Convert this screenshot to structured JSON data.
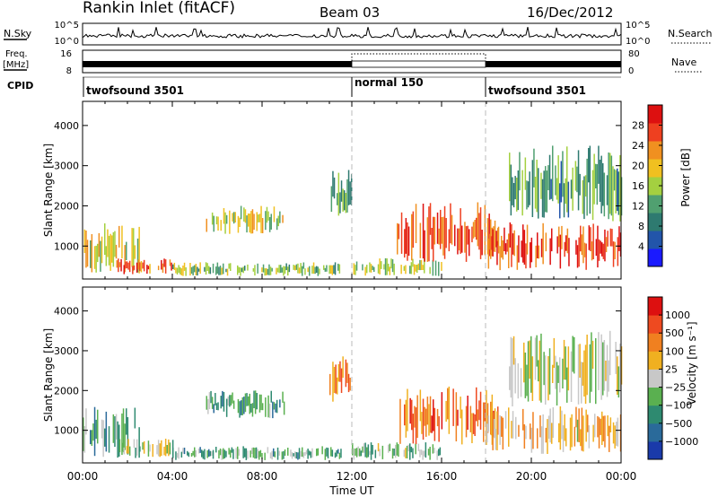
{
  "header": {
    "station": "Rankin Inlet (fitACF)",
    "beam": "Beam 03",
    "date": "16/Dec/2012"
  },
  "strips": {
    "nsky_label": "N.Sky",
    "nsearch_label": "N.Search",
    "nsky_ticks": [
      "10^5",
      "10^0"
    ],
    "nsearch_ticks": [
      "10^5",
      "10^0"
    ],
    "freq_label_top": "Freq.",
    "freq_label_bottom": "[MHz]",
    "freq_ticks": [
      "16",
      "8"
    ],
    "nave_label": "Nave",
    "nave_ticks": [
      "80",
      "0"
    ],
    "cpid_label": "CPID",
    "modes": [
      {
        "name": "twofsound 3501",
        "start": "00:00",
        "end": "12:00"
      },
      {
        "name": "normal 150",
        "start": "12:00",
        "end": "18:00"
      },
      {
        "name": "twofsound 3501",
        "start": "18:00",
        "end": "24:00"
      }
    ]
  },
  "chart_data": [
    {
      "type": "heatmap",
      "panel": "power",
      "xlabel": "",
      "ylabel": "Slant Range [km]",
      "xlim_hours": [
        0,
        24
      ],
      "ylim": [
        180,
        4600
      ],
      "yticks": [
        1000,
        2000,
        3000,
        4000
      ],
      "yticklabels": [
        "1000",
        "2000",
        "3000",
        "4000"
      ],
      "colorbar": {
        "label": "Power [dB]",
        "range": [
          0,
          32
        ],
        "ticks": [
          4,
          8,
          12,
          16,
          20,
          24,
          28
        ],
        "ticklabels": [
          "4",
          "8",
          "12",
          "16",
          "20",
          "24",
          "28"
        ],
        "colors": [
          "#1a1aff",
          "#2255aa",
          "#2e7a70",
          "#50a070",
          "#a4d040",
          "#f0c020",
          "#f09020",
          "#ee4020",
          "#dd1010"
        ]
      },
      "echo_regions": [
        {
          "t0": 0.0,
          "t1": 2.5,
          "r0": 300,
          "r1": 1600,
          "level": 0.6
        },
        {
          "t0": 1.5,
          "t1": 4.0,
          "r0": 300,
          "r1": 700,
          "level": 0.85
        },
        {
          "t0": 4.0,
          "t1": 11.5,
          "r0": 250,
          "r1": 600,
          "level": 0.45
        },
        {
          "t0": 5.5,
          "t1": 9.0,
          "r0": 1300,
          "r1": 2000,
          "level": 0.55
        },
        {
          "t0": 11.0,
          "t1": 12.0,
          "r0": 1700,
          "r1": 2900,
          "level": 0.4
        },
        {
          "t0": 12.0,
          "t1": 16.0,
          "r0": 250,
          "r1": 700,
          "level": 0.5
        },
        {
          "t0": 14.0,
          "t1": 18.5,
          "r0": 600,
          "r1": 2100,
          "level": 0.85
        },
        {
          "t0": 18.0,
          "t1": 24.0,
          "r0": 400,
          "r1": 1600,
          "level": 0.9
        },
        {
          "t0": 19.0,
          "t1": 24.0,
          "r0": 1600,
          "r1": 3500,
          "level": 0.35
        }
      ]
    },
    {
      "type": "heatmap",
      "panel": "velocity",
      "xlabel": "Time UT",
      "ylabel": "Slant Range [km]",
      "xlim_hours": [
        0,
        24
      ],
      "xticks_hours": [
        0,
        4,
        8,
        12,
        16,
        20,
        24
      ],
      "xticklabels": [
        "00:00",
        "04:00",
        "08:00",
        "12:00",
        "16:00",
        "20:00",
        "00:00"
      ],
      "ylim": [
        180,
        4600
      ],
      "yticks": [
        1000,
        2000,
        3000,
        4000
      ],
      "yticklabels": [
        "1000",
        "2000",
        "3000",
        "4000"
      ],
      "colorbar": {
        "label": "Velocity [m s⁻¹]",
        "ticks": [
          1000,
          500,
          100,
          25,
          -25,
          -100,
          -500,
          -1000
        ],
        "ticklabels": [
          "1000",
          "500",
          "100",
          "25",
          "−25",
          "−100",
          "−500",
          "−1000"
        ],
        "colors": [
          "#1a3aaa",
          "#2a6a9a",
          "#2e8a70",
          "#5ab050",
          "#c8c8c8",
          "#f0b020",
          "#f08020",
          "#ee4a20",
          "#dd1010"
        ]
      },
      "echo_regions": [
        {
          "t0": 0.0,
          "t1": 2.5,
          "r0": 300,
          "r1": 1600,
          "level": 0.3
        },
        {
          "t0": 1.5,
          "t1": 4.0,
          "r0": 300,
          "r1": 800,
          "level": 0.45
        },
        {
          "t0": 4.0,
          "t1": 11.5,
          "r0": 250,
          "r1": 600,
          "level": 0.35
        },
        {
          "t0": 5.5,
          "t1": 9.0,
          "r0": 1300,
          "r1": 2000,
          "level": 0.3
        },
        {
          "t0": 11.0,
          "t1": 12.0,
          "r0": 1700,
          "r1": 2900,
          "level": 0.75
        },
        {
          "t0": 12.0,
          "t1": 16.0,
          "r0": 250,
          "r1": 700,
          "level": 0.4
        },
        {
          "t0": 14.0,
          "t1": 18.5,
          "r0": 600,
          "r1": 2100,
          "level": 0.8
        },
        {
          "t0": 18.0,
          "t1": 24.0,
          "r0": 400,
          "r1": 1600,
          "level": 0.6
        },
        {
          "t0": 19.0,
          "t1": 24.0,
          "r0": 1600,
          "r1": 3500,
          "level": 0.5
        }
      ]
    }
  ]
}
